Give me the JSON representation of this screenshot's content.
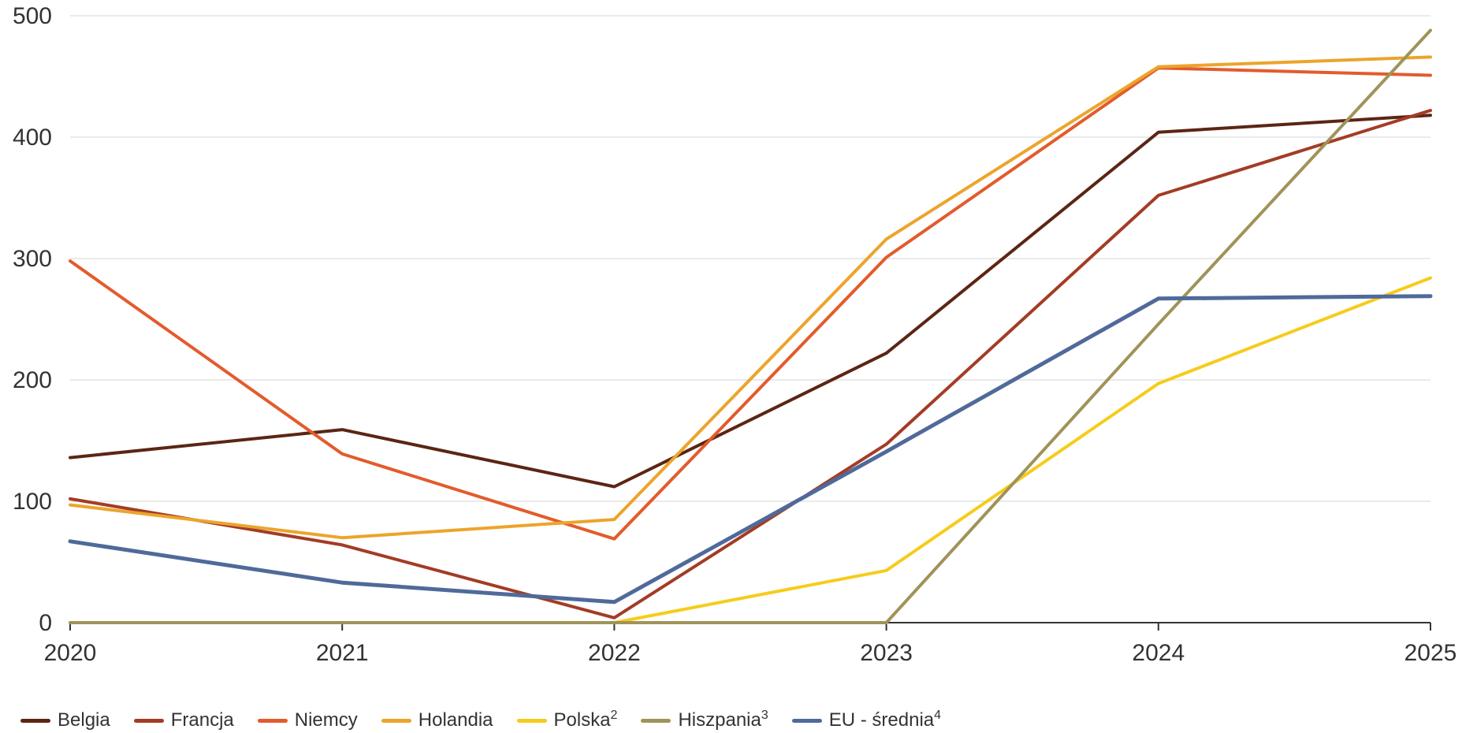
{
  "chart_data": {
    "type": "line",
    "title": "",
    "xlabel": "",
    "ylabel": "",
    "x": [
      "2020",
      "2021",
      "2022",
      "2023",
      "2024",
      "2025"
    ],
    "ylim": [
      0,
      500
    ],
    "yticks": [
      "0",
      "100",
      "200",
      "300",
      "400",
      "500"
    ],
    "grid": true,
    "legend_position": "bottom-left",
    "series": [
      {
        "name": "Belgia",
        "sup": "",
        "color": "#5c2514",
        "values": [
          136,
          159,
          112,
          222,
          404,
          418
        ]
      },
      {
        "name": "Francja",
        "sup": "",
        "color": "#a33c25",
        "values": [
          102,
          64,
          4,
          147,
          352,
          422
        ]
      },
      {
        "name": "Niemcy",
        "sup": "",
        "color": "#e35b2c",
        "values": [
          298,
          139,
          69,
          301,
          457,
          451
        ]
      },
      {
        "name": "Holandia",
        "sup": "",
        "color": "#eca42b",
        "values": [
          97,
          70,
          85,
          316,
          458,
          466
        ]
      },
      {
        "name": "Polska",
        "sup": "2",
        "color": "#f6cc1b",
        "values": [
          0,
          0,
          0,
          43,
          197,
          284
        ]
      },
      {
        "name": "Hiszpania",
        "sup": "3",
        "color": "#a09358",
        "values": [
          0,
          0,
          0,
          0,
          246,
          488
        ]
      },
      {
        "name": "EU - średnia",
        "sup": "4",
        "color": "#4f6a9a",
        "values": [
          67,
          33,
          17,
          141,
          267,
          269
        ]
      }
    ]
  }
}
